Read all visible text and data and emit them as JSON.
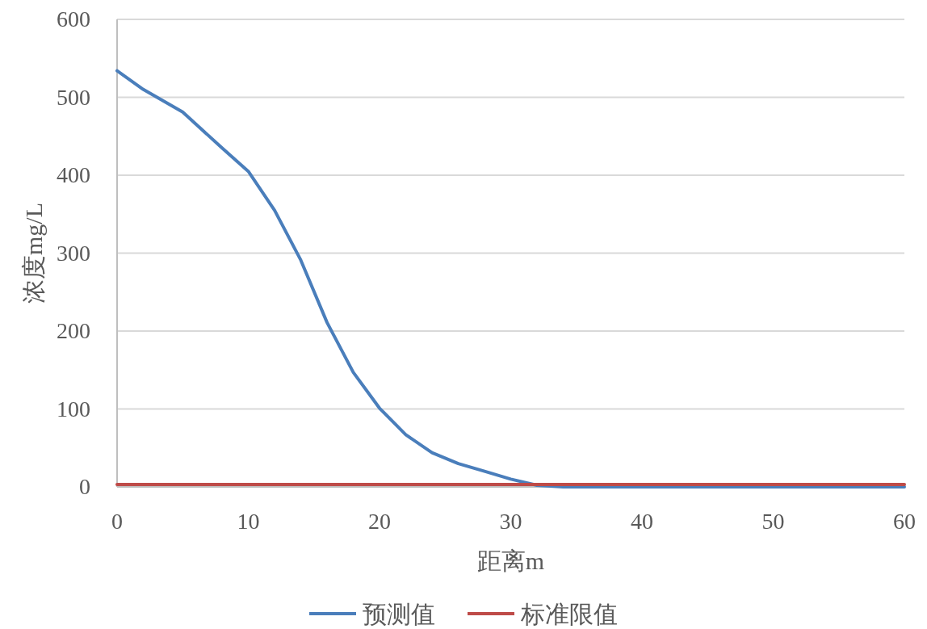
{
  "chart_data": {
    "type": "line",
    "xlabel": "距离m",
    "ylabel": "浓度mg/L",
    "xlim": [
      0,
      60
    ],
    "ylim": [
      0,
      600
    ],
    "xticks": [
      0,
      10,
      20,
      30,
      40,
      50,
      60
    ],
    "yticks": [
      0,
      100,
      200,
      300,
      400,
      500,
      600
    ],
    "grid": "y",
    "legend": "bottom",
    "series": [
      {
        "name": "预测值",
        "color": "#4a7ebb",
        "x": [
          0,
          2,
          5,
          8,
          10,
          12,
          14,
          16,
          18,
          20,
          22,
          24,
          26,
          28,
          30,
          32,
          34,
          40,
          50,
          60
        ],
        "values": [
          534,
          510,
          481,
          435,
          405,
          355,
          291,
          211,
          147,
          101,
          67,
          44,
          30,
          20,
          10,
          2,
          0,
          0,
          0,
          0
        ]
      },
      {
        "name": "标准限值",
        "color": "#be4b48",
        "x": [
          0,
          60
        ],
        "values": [
          3,
          3
        ]
      }
    ]
  }
}
